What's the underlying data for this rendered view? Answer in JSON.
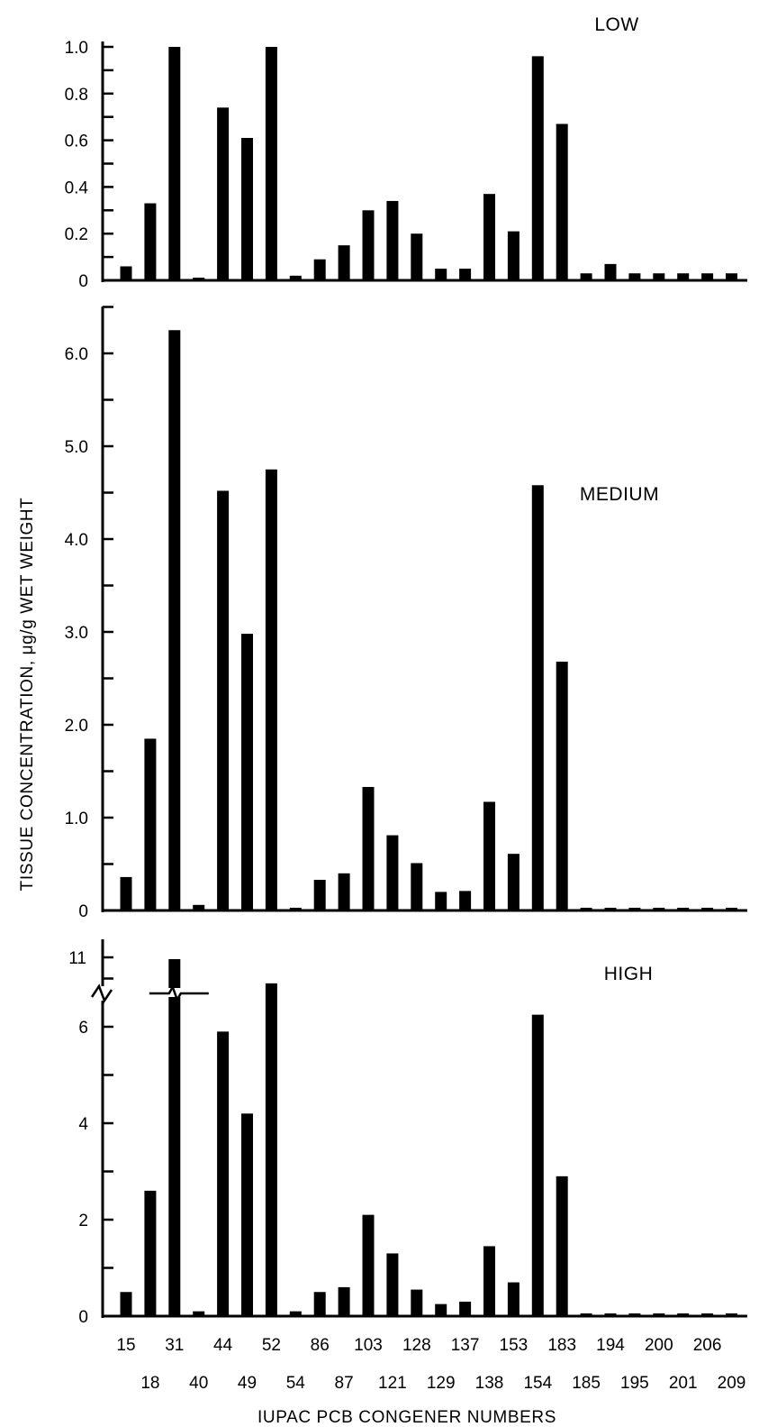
{
  "chart_data": {
    "type": "bar",
    "ylabel": "TISSUE  CONCENTRATION,  μg/g  WET  WEIGHT",
    "xlabel": "IUPAC PCB CONGENER NUMBERS",
    "categories": [
      "15",
      "18",
      "31",
      "40",
      "44",
      "49",
      "52",
      "54",
      "86",
      "87",
      "103",
      "121",
      "128",
      "129",
      "137",
      "138",
      "153",
      "154",
      "183",
      "185",
      "194",
      "195",
      "200",
      "201",
      "206",
      "209"
    ],
    "panels": [
      {
        "name": "LOW",
        "ylim": [
          0,
          1.0
        ],
        "yticks": [
          0,
          0.2,
          0.4,
          0.6,
          0.8,
          1.0
        ],
        "ytick_labels": [
          "0",
          "0.2",
          "0.4",
          "0.6",
          "0.8",
          "1.0"
        ],
        "values": [
          0.06,
          0.33,
          1.0,
          0.01,
          0.74,
          0.61,
          1.0,
          0.02,
          0.09,
          0.15,
          0.3,
          0.34,
          0.2,
          0.05,
          0.05,
          0.37,
          0.21,
          0.96,
          0.67,
          0.03,
          0.07,
          0.03,
          0.03,
          0.03,
          0.03,
          0.03
        ]
      },
      {
        "name": "MEDIUM",
        "ylim": [
          0,
          6.5
        ],
        "yticks": [
          0,
          1.0,
          2.0,
          3.0,
          4.0,
          5.0,
          6.0
        ],
        "ytick_labels": [
          "0",
          "1.0",
          "2.0",
          "3.0",
          "4.0",
          "5.0",
          "6.0"
        ],
        "values": [
          0.36,
          1.85,
          6.25,
          0.06,
          4.52,
          2.98,
          4.75,
          0.0,
          0.33,
          0.4,
          1.33,
          0.81,
          0.51,
          0.2,
          0.21,
          1.17,
          0.61,
          4.58,
          2.68,
          0.02,
          0.02,
          0.02,
          0.02,
          0.02,
          0.02,
          0.02
        ]
      },
      {
        "name": "HIGH",
        "ylim": [
          0,
          8
        ],
        "yticks": [
          0,
          2,
          4,
          6
        ],
        "ytick_labels": [
          "0",
          "2",
          "4",
          "6",
          "11"
        ],
        "axis_break": true,
        "break_label": "11",
        "values": [
          0.5,
          2.6,
          11.0,
          0.1,
          5.9,
          4.2,
          6.9,
          0.1,
          0.5,
          0.6,
          2.1,
          1.3,
          0.55,
          0.25,
          0.3,
          1.45,
          0.7,
          6.25,
          2.9,
          0.05,
          0.05,
          0.05,
          0.05,
          0.05,
          0.05,
          0.05
        ]
      }
    ]
  }
}
